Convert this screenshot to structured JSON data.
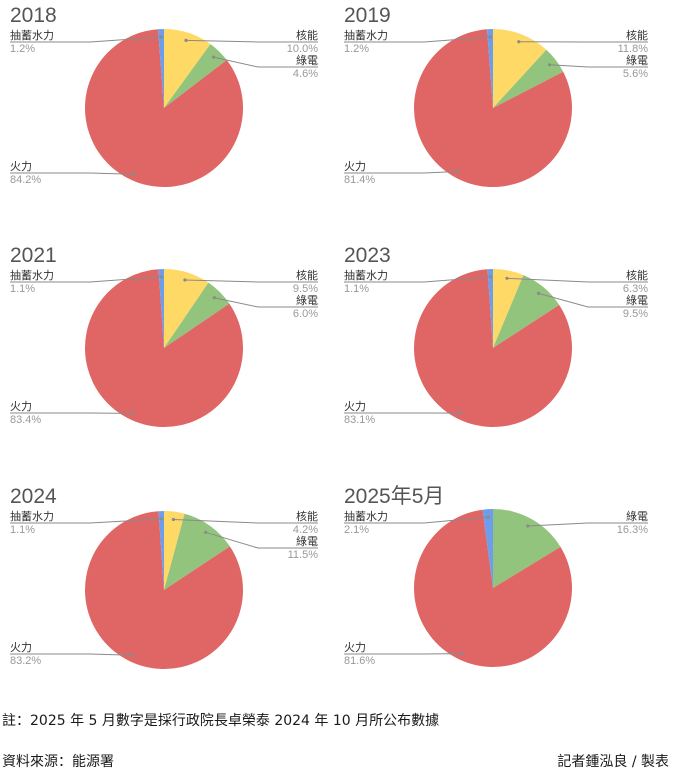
{
  "footer": {
    "note": "註：2025 年 5 月數字是採行政院長卓榮泰 2024 年 10 月所公布數據",
    "source": "資料來源：能源署",
    "credit": "記者鍾泓良 / 製表"
  },
  "colors": {
    "火力": "#e06666",
    "抽蓄水力": "#6d9eeb",
    "核能": "#ffd966",
    "綠電": "#93c47d"
  },
  "chart_data": [
    {
      "type": "pie",
      "title": "2018",
      "slices": [
        {
          "label": "抽蓄水力",
          "value": 1.2,
          "text": "1.2%"
        },
        {
          "label": "核能",
          "value": 10.0,
          "text": "10.0%"
        },
        {
          "label": "綠電",
          "value": 4.6,
          "text": "4.6%"
        },
        {
          "label": "火力",
          "value": 84.2,
          "text": "84.2%"
        }
      ]
    },
    {
      "type": "pie",
      "title": "2019",
      "slices": [
        {
          "label": "抽蓄水力",
          "value": 1.2,
          "text": "1.2%"
        },
        {
          "label": "核能",
          "value": 11.8,
          "text": "11.8%"
        },
        {
          "label": "綠電",
          "value": 5.6,
          "text": "5.6%"
        },
        {
          "label": "火力",
          "value": 81.4,
          "text": "81.4%"
        }
      ]
    },
    {
      "type": "pie",
      "title": "2021",
      "slices": [
        {
          "label": "抽蓄水力",
          "value": 1.1,
          "text": "1.1%"
        },
        {
          "label": "核能",
          "value": 9.5,
          "text": "9.5%"
        },
        {
          "label": "綠電",
          "value": 6.0,
          "text": "6.0%"
        },
        {
          "label": "火力",
          "value": 83.4,
          "text": "83.4%"
        }
      ]
    },
    {
      "type": "pie",
      "title": "2023",
      "slices": [
        {
          "label": "抽蓄水力",
          "value": 1.1,
          "text": "1.1%"
        },
        {
          "label": "核能",
          "value": 6.3,
          "text": "6.3%"
        },
        {
          "label": "綠電",
          "value": 9.5,
          "text": "9.5%"
        },
        {
          "label": "火力",
          "value": 83.1,
          "text": "83.1%"
        }
      ]
    },
    {
      "type": "pie",
      "title": "2024",
      "slices": [
        {
          "label": "抽蓄水力",
          "value": 1.1,
          "text": "1.1%"
        },
        {
          "label": "核能",
          "value": 4.2,
          "text": "4.2%"
        },
        {
          "label": "綠電",
          "value": 11.5,
          "text": "11.5%"
        },
        {
          "label": "火力",
          "value": 83.2,
          "text": "83.2%"
        }
      ]
    },
    {
      "type": "pie",
      "title": "2025年5月",
      "slices": [
        {
          "label": "抽蓄水力",
          "value": 2.1,
          "text": "2.1%"
        },
        {
          "label": "綠電",
          "value": 16.3,
          "text": "16.3%"
        },
        {
          "label": "火力",
          "value": 81.6,
          "text": "81.6%"
        }
      ]
    }
  ]
}
